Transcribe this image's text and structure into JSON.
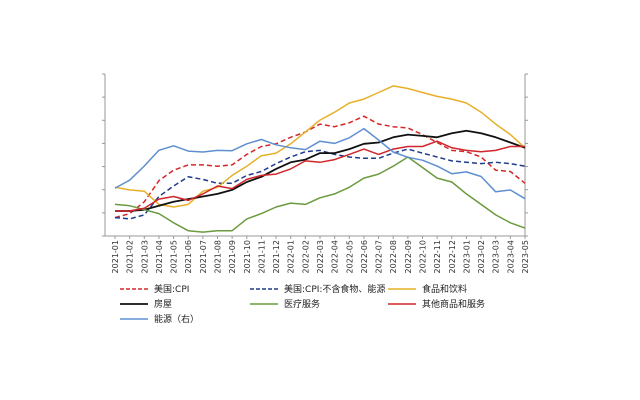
{
  "chart_data": {
    "type": "line",
    "x": [
      "2021-01",
      "2021-02",
      "2021-03",
      "2021-04",
      "2021-05",
      "2021-06",
      "2021-07",
      "2021-08",
      "2021-09",
      "2021-10",
      "2021-11",
      "2021-12",
      "2022-01",
      "2022-02",
      "2022-03",
      "2022-04",
      "2022-05",
      "2022-06",
      "2022-07",
      "2022-08",
      "2022-09",
      "2022-10",
      "2022-11",
      "2022-12",
      "2023-01",
      "2023-02",
      "2023-03",
      "2023-04",
      "2023-05"
    ],
    "left_axis": {
      "ylim": [
        0,
        12
      ],
      "ticks": [],
      "note": "tick labels not shown"
    },
    "right_axis": {
      "ylim": [
        -40,
        80
      ],
      "ticks": [],
      "note": "tick labels not shown"
    },
    "grid": false,
    "legend_position": "bottom",
    "series": [
      {
        "name": "美国:CPI",
        "axis": "left",
        "color": "#d62728",
        "dash": "5,3",
        "width": 1.5,
        "values": [
          1.4,
          1.7,
          2.6,
          4.2,
          5.0,
          5.4,
          5.4,
          5.3,
          5.4,
          6.2,
          6.8,
          7.0,
          7.5,
          7.9,
          8.5,
          8.3,
          8.6,
          9.1,
          8.5,
          8.3,
          8.2,
          7.7,
          7.1,
          6.5,
          6.4,
          6.0,
          5.0,
          4.9,
          4.0
        ]
      },
      {
        "name": "美国:CPI:不含食物、能源",
        "axis": "left",
        "color": "#1f3b8c",
        "dash": "5,3",
        "width": 1.5,
        "values": [
          1.4,
          1.3,
          1.6,
          3.0,
          3.8,
          4.5,
          4.3,
          4.0,
          4.0,
          4.6,
          4.9,
          5.5,
          6.0,
          6.4,
          6.5,
          6.2,
          6.0,
          5.9,
          5.9,
          6.3,
          6.6,
          6.3,
          6.0,
          5.7,
          5.6,
          5.5,
          5.6,
          5.5,
          5.3
        ]
      },
      {
        "name": "食品和饮料",
        "axis": "left",
        "color": "#e6b029",
        "dash": "",
        "width": 1.5,
        "values": [
          3.7,
          3.5,
          3.4,
          2.4,
          2.2,
          2.4,
          3.4,
          3.7,
          4.6,
          5.3,
          6.1,
          6.3,
          7.0,
          7.9,
          8.8,
          9.4,
          10.1,
          10.4,
          10.9,
          11.4,
          11.2,
          10.9,
          10.6,
          10.4,
          10.1,
          9.4,
          8.5,
          7.7,
          6.7
        ]
      },
      {
        "name": "房屋",
        "axis": "left",
        "color": "#111111",
        "dash": "",
        "width": 1.8,
        "values": [
          1.9,
          1.9,
          2.0,
          2.3,
          2.6,
          2.8,
          3.0,
          3.2,
          3.5,
          4.1,
          4.5,
          5.1,
          5.6,
          5.8,
          6.3,
          6.3,
          6.6,
          7.0,
          7.1,
          7.5,
          7.7,
          7.6,
          7.5,
          7.8,
          8.0,
          7.8,
          7.5,
          7.1,
          6.7
        ]
      },
      {
        "name": "医疗服务",
        "axis": "left",
        "color": "#6b9a3f",
        "dash": "",
        "width": 1.5,
        "values": [
          2.4,
          2.3,
          2.0,
          1.7,
          1.0,
          0.4,
          0.3,
          0.4,
          0.4,
          1.3,
          1.7,
          2.2,
          2.5,
          2.4,
          2.9,
          3.2,
          3.7,
          4.4,
          4.7,
          5.3,
          6.0,
          5.2,
          4.4,
          4.1,
          3.2,
          2.4,
          1.6,
          1.0,
          0.6
        ]
      },
      {
        "name": "其他商品和服务",
        "axis": "left",
        "color": "#d0262c",
        "dash": "",
        "width": 1.5,
        "values": [
          1.9,
          1.9,
          2.1,
          2.8,
          3.0,
          2.7,
          3.2,
          3.8,
          3.6,
          4.3,
          4.6,
          4.7,
          5.1,
          5.7,
          5.6,
          5.8,
          6.2,
          6.6,
          6.2,
          6.6,
          6.8,
          6.8,
          7.2,
          6.7,
          6.5,
          6.4,
          6.5,
          6.8,
          6.8
        ]
      },
      {
        "name": "能源（右）",
        "axis": "right",
        "color": "#5f8fd0",
        "dash": "",
        "width": 1.5,
        "values": [
          -3.6,
          2.4,
          13.2,
          25.1,
          28.5,
          24.5,
          23.8,
          25.0,
          24.8,
          30.0,
          33.3,
          29.3,
          27.0,
          25.6,
          32.0,
          30.3,
          34.6,
          41.6,
          32.9,
          23.8,
          19.8,
          17.6,
          13.1,
          7.3,
          8.7,
          5.2,
          -6.4,
          -5.1,
          -11.7
        ]
      }
    ]
  }
}
